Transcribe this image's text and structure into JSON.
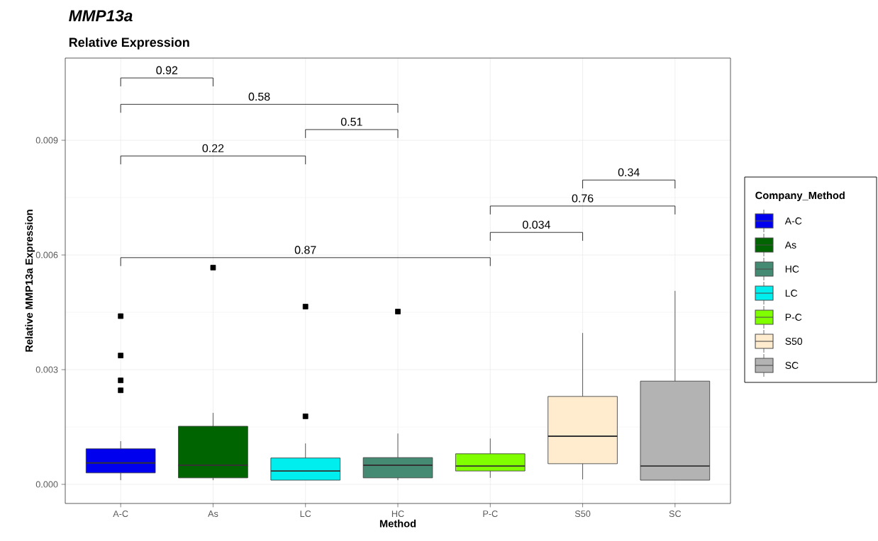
{
  "chart_data": {
    "type": "box",
    "title": "MMP13a",
    "subtitle": "Relative Expression",
    "xlabel": "Method",
    "ylabel": "Relative MMP13a Expression",
    "legend_title": "Company_Method",
    "categories": [
      "A-C",
      "As",
      "LC",
      "HC",
      "P-C",
      "S50",
      "SC"
    ],
    "series": [
      {
        "name": "A-C",
        "color": "#0000ee",
        "boxes": [
          {
            "low": 0.00011,
            "q1": 0.0003,
            "median": 0.00056,
            "q3": 0.00093,
            "high": 0.00113,
            "outliers": [
              0.0044,
              0.00337,
              0.00272,
              0.00246
            ]
          },
          null,
          null,
          null,
          null,
          null,
          null
        ]
      },
      {
        "name": "As",
        "color": "#006400",
        "boxes": [
          null,
          {
            "low": 0.00011,
            "q1": 0.00017,
            "median": 0.0005,
            "q3": 0.00152,
            "high": 0.00187,
            "outliers": [
              0.00567
            ]
          },
          null,
          null,
          null,
          null,
          null
        ]
      },
      {
        "name": "HC",
        "color": "#458b74",
        "boxes": [
          null,
          null,
          null,
          {
            "low": 0.00011,
            "q1": 0.00017,
            "median": 0.0005,
            "q3": 0.0007,
            "high": 0.00133,
            "outliers": [
              0.00452
            ]
          },
          null,
          null,
          null
        ]
      },
      {
        "name": "LC",
        "color": "#00eeee",
        "boxes": [
          null,
          null,
          {
            "low": 0.00011,
            "q1": 0.00011,
            "median": 0.00035,
            "q3": 0.00069,
            "high": 0.00107,
            "outliers": [
              0.00465,
              0.00178
            ]
          },
          null,
          null,
          null,
          null
        ]
      },
      {
        "name": "P-C",
        "color": "#7fff00",
        "boxes": [
          null,
          null,
          null,
          null,
          {
            "low": 0.00017,
            "q1": 0.00035,
            "median": 0.00048,
            "q3": 0.0008,
            "high": 0.0012
          },
          null,
          null
        ]
      },
      {
        "name": "S50",
        "color": "#ffebcd",
        "boxes": [
          null,
          null,
          null,
          null,
          null,
          {
            "low": 0.00013,
            "q1": 0.00054,
            "median": 0.00126,
            "q3": 0.0023,
            "high": 0.00396
          },
          null
        ]
      },
      {
        "name": "SC",
        "color": "#b3b3b3",
        "boxes": [
          null,
          null,
          null,
          null,
          null,
          null,
          {
            "low": 0.00011,
            "q1": 0.00011,
            "median": 0.00048,
            "q3": 0.0027,
            "high": 0.00506
          }
        ]
      }
    ],
    "ylim": [
      -0.0005,
      0.01115
    ],
    "yticks": [
      {
        "value": 0,
        "label": "0.000"
      },
      {
        "value": 0.003,
        "label": "0.003"
      },
      {
        "value": 0.006,
        "label": "0.006"
      },
      {
        "value": 0.009,
        "label": "0.009"
      }
    ],
    "grid": true,
    "legend": "right",
    "marker": "square",
    "annotations": [
      "0.92",
      "0.58",
      "0.51",
      "0.22",
      "0.34",
      "0.76",
      "0.034",
      "0.87"
    ]
  }
}
